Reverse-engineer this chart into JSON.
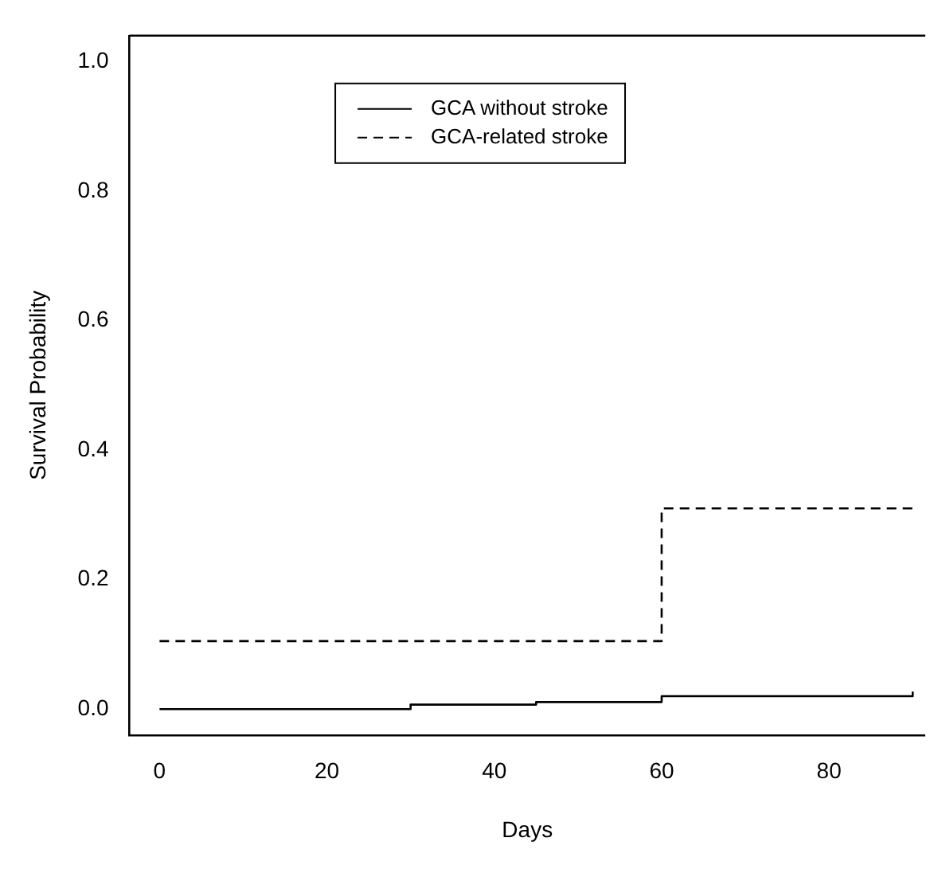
{
  "chart_data": {
    "type": "step",
    "xlabel": "Days",
    "ylabel": "Survival Probability",
    "xlim": [
      -3.6,
      91.5
    ],
    "xticks": [
      0,
      20,
      40,
      60,
      80
    ],
    "ylim": [
      -0.04,
      1.04
    ],
    "yticks": [
      {
        "value": 0,
        "label": "0.0"
      },
      {
        "value": 0.2,
        "label": "0.2"
      },
      {
        "value": 0.4,
        "label": "0.4"
      },
      {
        "value": 0.6,
        "label": "0.6"
      },
      {
        "value": 0.8,
        "label": "0.8"
      },
      {
        "value": 1,
        "label": "1.0"
      }
    ],
    "grid": false,
    "legend": "top",
    "marker": "none",
    "series": [
      {
        "name": "GCA without stroke",
        "color": "#000000",
        "line_style": "solid",
        "x": [
          0,
          30,
          45,
          60,
          90
        ],
        "values": [
          0,
          0.007,
          0.011,
          0.02,
          0.027
        ]
      },
      {
        "name": "GCA-related stroke",
        "color": "#000000",
        "line_style": "dashed",
        "x": [
          0,
          60,
          90
        ],
        "values": [
          0.105,
          0.31,
          0.31
        ]
      }
    ]
  }
}
